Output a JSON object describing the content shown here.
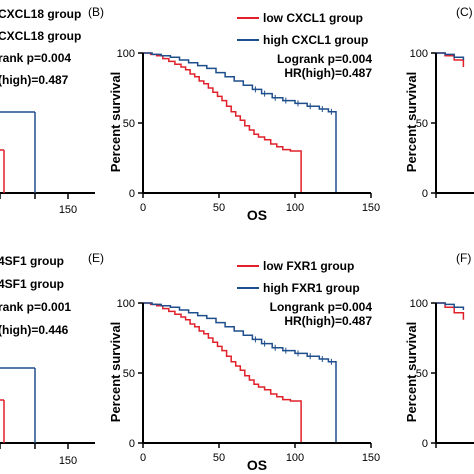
{
  "chart_data": [
    {
      "type": "line",
      "panel": "top-left (cropped)",
      "legend": {
        "low": "CXCL18 group",
        "high": "CXCL18 group"
      },
      "stats": {
        "logrank": "rank p=0.004",
        "hr": "(high)=0.487"
      },
      "x_tick_labels": [
        "150"
      ],
      "xlim": [
        0,
        150
      ],
      "series": [
        {
          "name": "low",
          "color": "#e0202a",
          "x": [
            0,
            104
          ],
          "y": [
            30,
            30
          ]
        },
        {
          "name": "high",
          "color": "#1f4e8c",
          "x": [
            0,
            122,
            122
          ],
          "y": [
            58,
            58,
            0
          ]
        }
      ]
    },
    {
      "type": "line",
      "panel_label": "(B)",
      "title": "",
      "xlabel": "OS",
      "ylabel": "Percent survival",
      "xlim": [
        0,
        150
      ],
      "ylim": [
        0,
        100
      ],
      "x_ticks": [
        0,
        50,
        100,
        150
      ],
      "y_ticks": [
        0,
        50,
        100
      ],
      "legend": {
        "placement": "top-right",
        "entries": [
          {
            "label": "low  CXCL1 group",
            "color": "#e0202a"
          },
          {
            "label": "high CXCL1 group",
            "color": "#1f4e8c"
          }
        ]
      },
      "annotations": [
        "Logrank p=0.004",
        "HR(high)=0.487"
      ],
      "series": [
        {
          "name": "low",
          "color": "#e0202a",
          "x": [
            0,
            5,
            9,
            13,
            17,
            21,
            25,
            28,
            31,
            34,
            37,
            40,
            43,
            46,
            49,
            52,
            55,
            58,
            61,
            64,
            67,
            70,
            73,
            76,
            80,
            84,
            88,
            92,
            97,
            103,
            104
          ],
          "y": [
            100,
            99,
            98,
            96,
            94,
            92,
            90,
            88,
            85,
            83,
            80,
            78,
            75,
            72,
            69,
            66,
            62,
            58,
            55,
            52,
            48,
            45,
            42,
            40,
            38,
            35,
            33,
            31,
            30,
            30,
            0
          ]
        },
        {
          "name": "high",
          "color": "#1f4e8c",
          "x": [
            0,
            6,
            12,
            18,
            24,
            30,
            36,
            42,
            48,
            54,
            60,
            66,
            72,
            78,
            85,
            92,
            100,
            108,
            116,
            122,
            127,
            127
          ],
          "y": [
            100,
            99,
            98,
            97,
            95,
            93,
            91,
            89,
            86,
            83,
            80,
            77,
            74,
            71,
            68,
            66,
            64,
            62,
            60,
            58,
            58,
            0
          ]
        }
      ]
    },
    {
      "type": "line",
      "panel_label": "(C)",
      "ylabel": "Percent survival",
      "y_ticks": [
        0,
        50,
        100
      ],
      "series": [
        {
          "name": "low",
          "color": "#e0202a",
          "x": [
            0,
            6,
            12,
            18
          ],
          "y": [
            100,
            98,
            95,
            90
          ]
        },
        {
          "name": "high",
          "color": "#1f4e8c",
          "x": [
            0,
            6,
            12,
            18
          ],
          "y": [
            100,
            99,
            97,
            95
          ]
        }
      ]
    },
    {
      "type": "line",
      "panel": "bottom-left (cropped)",
      "legend": {
        "low": "4SF1 group",
        "high": "4SF1 group"
      },
      "stats": {
        "logrank": "rank p=0.001",
        "hr": "(high)=0.446"
      },
      "x_tick_labels": [
        "150"
      ],
      "xlim": [
        0,
        150
      ],
      "series": [
        {
          "name": "low",
          "color": "#e0202a",
          "x": [
            0,
            104
          ],
          "y": [
            30,
            30
          ]
        },
        {
          "name": "high",
          "color": "#1f4e8c",
          "x": [
            0,
            122,
            122
          ],
          "y": [
            58,
            58,
            0
          ]
        }
      ]
    },
    {
      "type": "line",
      "panel_label": "(E)",
      "xlabel": "OS",
      "ylabel": "Percent survival",
      "xlim": [
        0,
        150
      ],
      "ylim": [
        0,
        100
      ],
      "x_ticks": [
        0,
        50,
        100,
        150
      ],
      "y_ticks": [
        0,
        50,
        100
      ],
      "legend": {
        "placement": "top-right",
        "entries": [
          {
            "label": "low  FXR1 group",
            "color": "#e0202a"
          },
          {
            "label": "high FXR1 group",
            "color": "#1f4e8c"
          }
        ]
      },
      "annotations": [
        "Longrank p=0.004",
        "HR(high)=0.487"
      ],
      "series": [
        {
          "name": "low",
          "color": "#e0202a",
          "x": [
            0,
            5,
            9,
            13,
            17,
            21,
            25,
            28,
            31,
            34,
            37,
            40,
            43,
            46,
            49,
            52,
            55,
            58,
            61,
            64,
            67,
            70,
            73,
            76,
            80,
            84,
            88,
            92,
            97,
            103,
            104
          ],
          "y": [
            100,
            99,
            98,
            96,
            94,
            92,
            90,
            88,
            85,
            83,
            80,
            78,
            75,
            72,
            69,
            66,
            62,
            58,
            55,
            52,
            48,
            45,
            42,
            40,
            38,
            35,
            33,
            31,
            30,
            30,
            0
          ]
        },
        {
          "name": "high",
          "color": "#1f4e8c",
          "x": [
            0,
            6,
            12,
            18,
            24,
            30,
            36,
            42,
            48,
            54,
            60,
            66,
            72,
            78,
            85,
            92,
            100,
            108,
            116,
            122,
            127,
            127
          ],
          "y": [
            100,
            99,
            98,
            97,
            95,
            93,
            91,
            89,
            86,
            83,
            80,
            77,
            74,
            71,
            68,
            66,
            64,
            62,
            60,
            58,
            58,
            0
          ]
        }
      ]
    },
    {
      "type": "line",
      "panel_label": "(F)",
      "ylabel": "Percent survival",
      "y_ticks": [
        0,
        50,
        100
      ],
      "series": [
        {
          "name": "low",
          "color": "#e0202a",
          "x": [
            0,
            6,
            12,
            18
          ],
          "y": [
            100,
            97,
            93,
            88
          ]
        },
        {
          "name": "high",
          "color": "#1f4e8c",
          "x": [
            0,
            6,
            12,
            18
          ],
          "y": [
            100,
            99,
            97,
            95
          ]
        }
      ]
    }
  ]
}
